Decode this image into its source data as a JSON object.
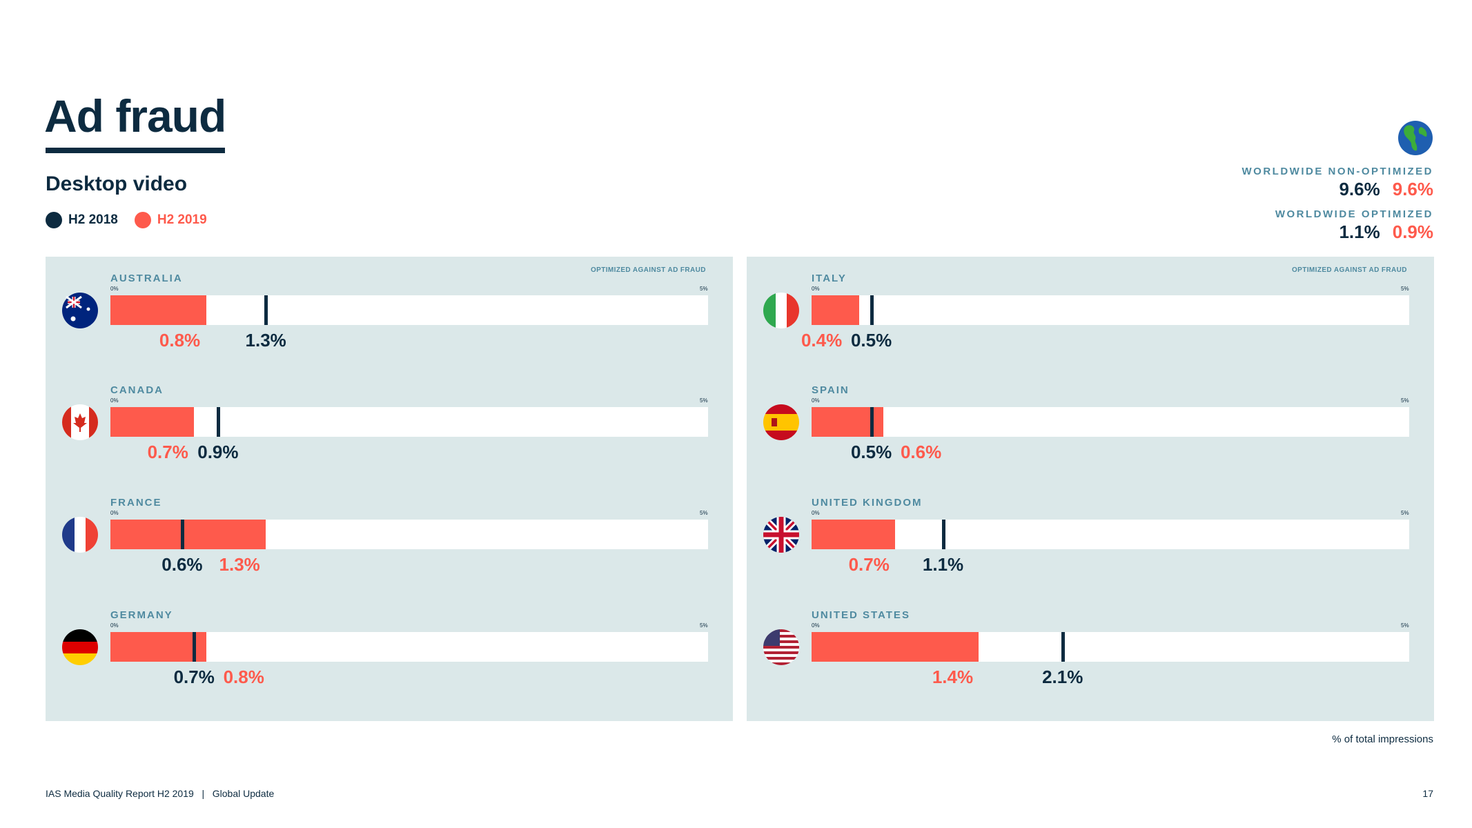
{
  "page": {
    "title": "Ad fraud",
    "subtitle": "Desktop video",
    "legend": [
      {
        "label": "H2 2018",
        "color": "#0d2b40"
      },
      {
        "label": "H2 2019",
        "color": "#fe5a4c"
      }
    ],
    "worldwide": {
      "non_optimized_label": "WORLDWIDE NON-OPTIMIZED",
      "non_optimized_2018": "9.6%",
      "non_optimized_2019": "9.6%",
      "optimized_label": "WORLDWIDE OPTIMIZED",
      "optimized_2018": "1.1%",
      "optimized_2019": "0.9%",
      "icon": "globe-icon"
    },
    "panel_note": "OPTIMIZED AGAINST AD FRAUD",
    "axis_min_label": "0%",
    "axis_max_label": "5%",
    "impressions_note": "% of total impressions",
    "footer": "IAS Media Quality Report H2 2019   |   Global Update",
    "page_number": "17"
  },
  "chart_data": {
    "type": "bar",
    "xlim": [
      0,
      5
    ],
    "unit": "%",
    "series_colors": {
      "H2 2018": "#0d2b40",
      "H2 2019": "#fe5a4c"
    },
    "panels": [
      {
        "countries": [
          {
            "name": "AUSTRALIA",
            "flag": "australia-flag-icon",
            "h2_2019": 0.8,
            "h2_2018": 1.3,
            "label_2019": "0.8%",
            "label_2018": "1.3%"
          },
          {
            "name": "CANADA",
            "flag": "canada-flag-icon",
            "h2_2019": 0.7,
            "h2_2018": 0.9,
            "label_2019": "0.7%",
            "label_2018": "0.9%"
          },
          {
            "name": "FRANCE",
            "flag": "france-flag-icon",
            "h2_2019": 1.3,
            "h2_2018": 0.6,
            "label_2019": "1.3%",
            "label_2018": "0.6%"
          },
          {
            "name": "GERMANY",
            "flag": "germany-flag-icon",
            "h2_2019": 0.8,
            "h2_2018": 0.7,
            "label_2019": "0.8%",
            "label_2018": "0.7%"
          }
        ]
      },
      {
        "countries": [
          {
            "name": "ITALY",
            "flag": "italy-flag-icon",
            "h2_2019": 0.4,
            "h2_2018": 0.5,
            "label_2019": "0.4%",
            "label_2018": "0.5%"
          },
          {
            "name": "SPAIN",
            "flag": "spain-flag-icon",
            "h2_2019": 0.6,
            "h2_2018": 0.5,
            "label_2019": "0.6%",
            "label_2018": "0.5%"
          },
          {
            "name": "UNITED KINGDOM",
            "flag": "uk-flag-icon",
            "h2_2019": 0.7,
            "h2_2018": 1.1,
            "label_2019": "0.7%",
            "label_2018": "1.1%"
          },
          {
            "name": "UNITED STATES",
            "flag": "us-flag-icon",
            "h2_2019": 1.4,
            "h2_2018": 2.1,
            "label_2019": "1.4%",
            "label_2018": "2.1%"
          }
        ]
      }
    ]
  }
}
